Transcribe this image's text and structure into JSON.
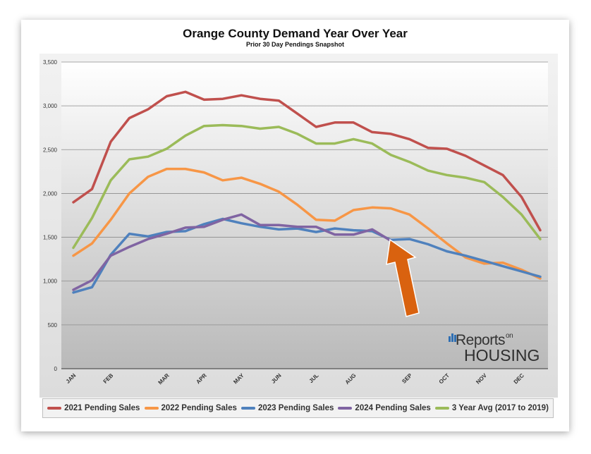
{
  "chart_data": {
    "type": "line",
    "title": "Orange County Demand Year Over Year",
    "subtitle": "Prior 30 Day Pendings Snapshot",
    "ylim": [
      0,
      3500
    ],
    "y_ticks": [
      "0",
      "500",
      "1,000",
      "1,500",
      "2,000",
      "2,500",
      "3,000",
      "3,500"
    ],
    "x_tick_labels": [
      "JAN",
      "FEB",
      "MAR",
      "APR",
      "MAY",
      "JUN",
      "JUL",
      "AUG",
      "SEP",
      "OCT",
      "NOV",
      "DEC"
    ],
    "x_tick_positions": [
      0,
      2,
      5,
      7,
      9,
      11,
      13,
      15,
      18,
      20,
      22,
      24
    ],
    "x_count": 26,
    "grid": "horizontal",
    "legend_position": "bottom",
    "series": [
      {
        "name": "2021 Pending Sales",
        "color": "#c0504d",
        "values": [
          1900,
          2050,
          2590,
          2860,
          2960,
          3110,
          3160,
          3070,
          3080,
          3120,
          3080,
          3060,
          2910,
          2760,
          2810,
          2810,
          2700,
          2680,
          2620,
          2520,
          2510,
          2430,
          2320,
          2210,
          1960,
          1580
        ]
      },
      {
        "name": "2022 Pending Sales",
        "color": "#f79646",
        "values": [
          1290,
          1430,
          1700,
          2000,
          2190,
          2280,
          2280,
          2240,
          2150,
          2180,
          2110,
          2020,
          1870,
          1700,
          1690,
          1810,
          1840,
          1830,
          1760,
          1600,
          1430,
          1270,
          1200,
          1210,
          1130,
          1030
        ]
      },
      {
        "name": "2023 Pending Sales",
        "color": "#4f81bd",
        "values": [
          870,
          930,
          1300,
          1540,
          1510,
          1560,
          1570,
          1650,
          1710,
          1660,
          1620,
          1590,
          1600,
          1560,
          1600,
          1580,
          1570,
          1470,
          1480,
          1420,
          1340,
          1290,
          1230,
          1170,
          1110,
          1050
        ]
      },
      {
        "name": "2024 Pending Sales",
        "color": "#8064a2",
        "values": [
          900,
          1010,
          1290,
          1390,
          1480,
          1540,
          1610,
          1620,
          1700,
          1760,
          1640,
          1640,
          1620,
          1620,
          1530,
          1530,
          1590,
          1460,
          null,
          null,
          null,
          null,
          null,
          null,
          null,
          null
        ]
      },
      {
        "name": "3 Year Avg (2017 to 2019)",
        "color": "#9bbb59",
        "values": [
          1380,
          1720,
          2150,
          2390,
          2420,
          2510,
          2660,
          2770,
          2780,
          2770,
          2740,
          2760,
          2680,
          2570,
          2570,
          2620,
          2570,
          2440,
          2360,
          2260,
          2210,
          2180,
          2130,
          1960,
          1760,
          1480
        ]
      }
    ]
  },
  "logo": {
    "line1": "Reports",
    "line1_suffix": "on",
    "line2": "HOUSING"
  }
}
